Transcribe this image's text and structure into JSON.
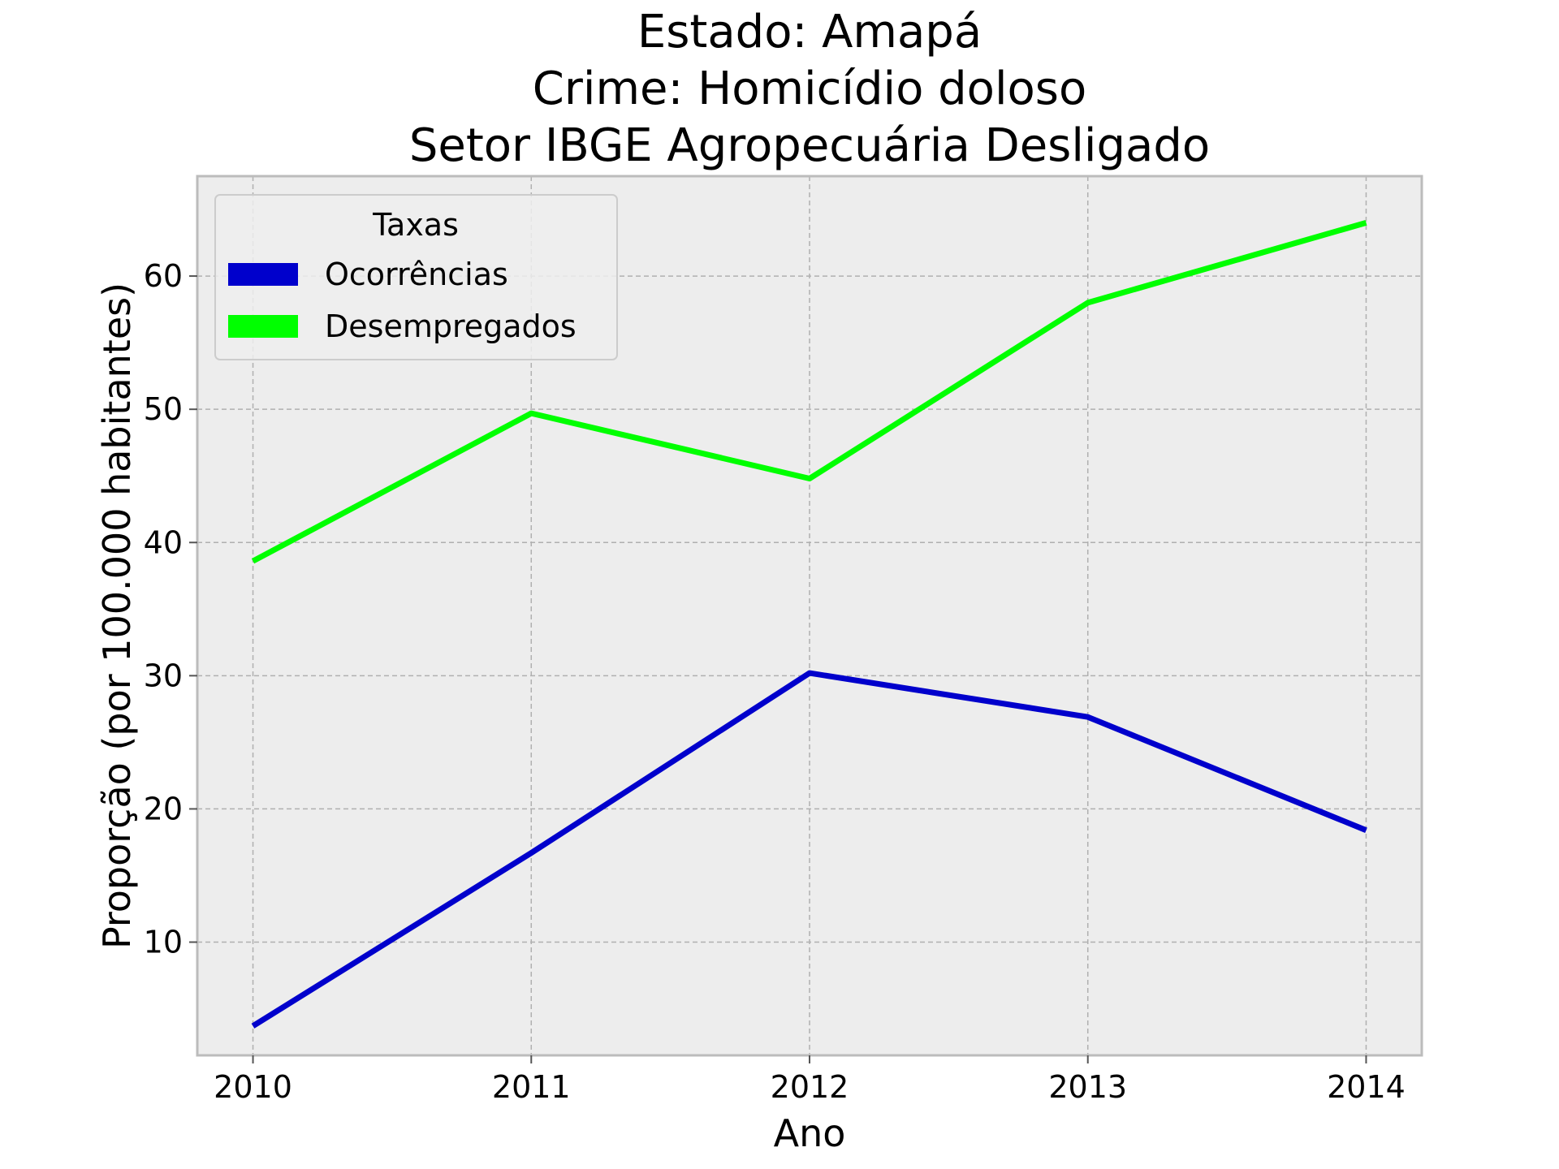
{
  "chart_data": {
    "type": "line",
    "title_lines": [
      "Estado: Amapá",
      "Crime: Homicídio doloso",
      "Setor IBGE  Agropecuária   Desligado"
    ],
    "xlabel": "Ano",
    "ylabel": "Proporção (por 100.000 habitantes)",
    "x": [
      "2010",
      "2011",
      "2012",
      "2013",
      "2014"
    ],
    "xlim": [
      2009.8,
      2014.2
    ],
    "ylim": [
      1.5,
      67.5
    ],
    "yticks": [
      10,
      20,
      30,
      40,
      50,
      60
    ],
    "grid": true,
    "legend": {
      "title": "Taxas",
      "placement": "top-left"
    },
    "series": [
      {
        "name": "Ocorrências",
        "color": "#0000cc",
        "values": [
          3.7,
          16.7,
          30.2,
          26.9,
          18.4
        ]
      },
      {
        "name": "Desempregados",
        "color": "#00ff00",
        "values": [
          38.6,
          49.7,
          44.8,
          58.0,
          64.0
        ]
      }
    ],
    "colors": {
      "plot_background": "#ededed",
      "frame": "#bcbcbc"
    }
  }
}
